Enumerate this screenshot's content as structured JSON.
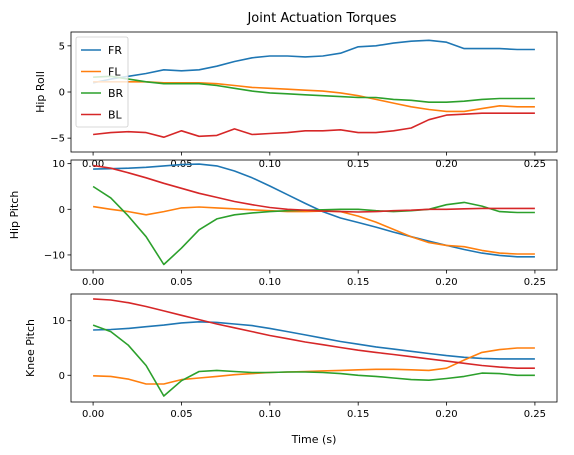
{
  "chart_data": [
    {
      "type": "line",
      "title": "Joint Actuation Torques",
      "xlabel": "",
      "ylabel": "Hip Roll",
      "xlim": [
        -0.0125,
        0.2625
      ],
      "ylim": [
        -6.5,
        6.5
      ],
      "xticks": [
        0.0,
        0.05,
        0.1,
        0.15,
        0.2,
        0.25
      ],
      "xtick_labels": [
        "0.00",
        "0.05",
        "0.10",
        "0.15",
        "0.20",
        "0.25"
      ],
      "yticks": [
        -5,
        0,
        5
      ],
      "ytick_labels": [
        "−5",
        "0",
        "5"
      ],
      "legend": {
        "placement": "upper-left",
        "entries": [
          "FR",
          "FL",
          "BR",
          "BL"
        ]
      },
      "x": [
        0.0,
        0.01,
        0.02,
        0.03,
        0.04,
        0.05,
        0.06,
        0.07,
        0.08,
        0.09,
        0.1,
        0.11,
        0.12,
        0.13,
        0.14,
        0.15,
        0.16,
        0.17,
        0.18,
        0.19,
        0.2,
        0.21,
        0.22,
        0.23,
        0.24,
        0.25
      ],
      "series": [
        {
          "name": "FR",
          "color": "#1f77b4",
          "values": [
            1.0,
            1.4,
            1.7,
            2.0,
            2.4,
            2.3,
            2.4,
            2.8,
            3.3,
            3.7,
            3.9,
            3.9,
            3.8,
            3.9,
            4.2,
            4.9,
            5.0,
            5.3,
            5.5,
            5.6,
            5.4,
            4.7,
            4.7,
            4.7,
            4.6,
            4.6
          ]
        },
        {
          "name": "FL",
          "color": "#ff7f0e",
          "values": [
            1.1,
            1.1,
            1.1,
            1.1,
            1.0,
            1.0,
            1.0,
            0.9,
            0.7,
            0.5,
            0.4,
            0.3,
            0.2,
            0.1,
            -0.1,
            -0.4,
            -0.8,
            -1.2,
            -1.6,
            -1.9,
            -2.1,
            -2.1,
            -1.8,
            -1.5,
            -1.6,
            -1.6
          ]
        },
        {
          "name": "BR",
          "color": "#2ca02c",
          "values": [
            1.6,
            1.7,
            1.4,
            1.1,
            0.9,
            0.9,
            0.9,
            0.7,
            0.4,
            0.1,
            -0.1,
            -0.2,
            -0.3,
            -0.4,
            -0.5,
            -0.6,
            -0.6,
            -0.8,
            -0.9,
            -1.1,
            -1.1,
            -1.0,
            -0.8,
            -0.7,
            -0.7,
            -0.7
          ]
        },
        {
          "name": "BL",
          "color": "#d62728",
          "values": [
            -4.6,
            -4.4,
            -4.3,
            -4.4,
            -4.9,
            -4.2,
            -4.8,
            -4.7,
            -4.0,
            -4.6,
            -4.5,
            -4.4,
            -4.2,
            -4.2,
            -4.1,
            -4.4,
            -4.4,
            -4.2,
            -3.9,
            -3.0,
            -2.5,
            -2.4,
            -2.3,
            -2.3,
            -2.3,
            -2.3
          ]
        }
      ]
    },
    {
      "type": "line",
      "title": "",
      "xlabel": "",
      "ylabel": "Hip Pitch",
      "xlim": [
        -0.0125,
        0.2625
      ],
      "ylim": [
        -13.3,
        10.8
      ],
      "xticks": [
        0.0,
        0.05,
        0.1,
        0.15,
        0.2,
        0.25
      ],
      "xtick_labels": [
        "0.00",
        "0.05",
        "0.10",
        "0.15",
        "0.20",
        "0.25"
      ],
      "yticks": [
        -10,
        0,
        10
      ],
      "ytick_labels": [
        "−10",
        "0",
        "10"
      ],
      "x": [
        0.0,
        0.01,
        0.02,
        0.03,
        0.04,
        0.05,
        0.06,
        0.07,
        0.08,
        0.09,
        0.1,
        0.11,
        0.12,
        0.13,
        0.14,
        0.15,
        0.16,
        0.17,
        0.18,
        0.19,
        0.2,
        0.21,
        0.22,
        0.23,
        0.24,
        0.25
      ],
      "series": [
        {
          "name": "FR",
          "color": "#1f77b4",
          "values": [
            8.8,
            8.9,
            9.0,
            9.2,
            9.5,
            9.8,
            9.9,
            9.5,
            8.4,
            6.9,
            5.1,
            3.2,
            1.3,
            -0.5,
            -1.9,
            -2.9,
            -3.9,
            -5.0,
            -6.0,
            -7.0,
            -7.9,
            -8.8,
            -9.6,
            -10.1,
            -10.4,
            -10.4
          ]
        },
        {
          "name": "FL",
          "color": "#ff7f0e",
          "values": [
            0.6,
            0.0,
            -0.5,
            -1.2,
            -0.5,
            0.3,
            0.5,
            0.3,
            0.1,
            -0.1,
            -0.3,
            -0.5,
            -0.5,
            -0.4,
            -0.5,
            -1.5,
            -2.8,
            -4.4,
            -6.0,
            -7.3,
            -7.9,
            -8.2,
            -9.0,
            -9.6,
            -9.8,
            -9.8
          ]
        },
        {
          "name": "BR",
          "color": "#2ca02c",
          "values": [
            5.0,
            2.5,
            -1.5,
            -6.0,
            -12.1,
            -8.5,
            -4.5,
            -2.1,
            -1.2,
            -0.8,
            -0.5,
            -0.3,
            -0.2,
            -0.1,
            0.0,
            0.0,
            -0.3,
            -0.5,
            -0.3,
            0.0,
            1.0,
            1.5,
            0.7,
            -0.5,
            -0.7,
            -0.7
          ]
        },
        {
          "name": "BL",
          "color": "#d62728",
          "values": [
            9.6,
            9.0,
            8.0,
            6.9,
            5.7,
            4.6,
            3.5,
            2.6,
            1.7,
            1.0,
            0.4,
            0.0,
            -0.2,
            -0.4,
            -0.5,
            -0.6,
            -0.5,
            -0.3,
            -0.2,
            0.0,
            0.0,
            0.1,
            0.2,
            0.2,
            0.2,
            0.2
          ]
        }
      ]
    },
    {
      "type": "line",
      "title": "",
      "xlabel": "Time (s)",
      "ylabel": "Knee Pitch",
      "xlim": [
        -0.0125,
        0.2625
      ],
      "ylim": [
        -4.9,
        14.9
      ],
      "xticks": [
        0.0,
        0.05,
        0.1,
        0.15,
        0.2,
        0.25
      ],
      "xtick_labels": [
        "0.00",
        "0.05",
        "0.10",
        "0.15",
        "0.20",
        "0.25"
      ],
      "yticks": [
        0,
        10
      ],
      "ytick_labels": [
        "0",
        "10"
      ],
      "x": [
        0.0,
        0.01,
        0.02,
        0.03,
        0.04,
        0.05,
        0.06,
        0.07,
        0.08,
        0.09,
        0.1,
        0.11,
        0.12,
        0.13,
        0.14,
        0.15,
        0.16,
        0.17,
        0.18,
        0.19,
        0.2,
        0.21,
        0.22,
        0.23,
        0.24,
        0.25
      ],
      "series": [
        {
          "name": "FR",
          "color": "#1f77b4",
          "values": [
            8.3,
            8.4,
            8.6,
            8.9,
            9.2,
            9.6,
            9.8,
            9.7,
            9.4,
            9.1,
            8.6,
            8.0,
            7.4,
            6.8,
            6.2,
            5.7,
            5.2,
            4.8,
            4.4,
            4.0,
            3.6,
            3.3,
            3.1,
            3.0,
            3.0,
            3.0
          ]
        },
        {
          "name": "FL",
          "color": "#ff7f0e",
          "values": [
            -0.1,
            -0.2,
            -0.7,
            -1.6,
            -1.6,
            -0.8,
            -0.5,
            -0.2,
            0.1,
            0.3,
            0.5,
            0.6,
            0.7,
            0.8,
            0.9,
            1.0,
            1.1,
            1.1,
            1.0,
            0.9,
            1.3,
            2.8,
            4.2,
            4.7,
            5.0,
            5.0
          ]
        },
        {
          "name": "BR",
          "color": "#2ca02c",
          "values": [
            9.2,
            8.0,
            5.5,
            1.8,
            -3.8,
            -1.0,
            0.7,
            0.9,
            0.7,
            0.5,
            0.5,
            0.6,
            0.6,
            0.5,
            0.3,
            0.0,
            -0.2,
            -0.5,
            -0.8,
            -0.9,
            -0.6,
            -0.2,
            0.4,
            0.3,
            0.0,
            0.0
          ]
        },
        {
          "name": "BL",
          "color": "#d62728",
          "values": [
            14.0,
            13.8,
            13.3,
            12.6,
            11.8,
            11.0,
            10.2,
            9.4,
            8.7,
            8.0,
            7.3,
            6.7,
            6.1,
            5.6,
            5.1,
            4.6,
            4.2,
            3.8,
            3.4,
            3.0,
            2.6,
            2.2,
            1.8,
            1.5,
            1.3,
            1.3
          ]
        }
      ]
    }
  ]
}
